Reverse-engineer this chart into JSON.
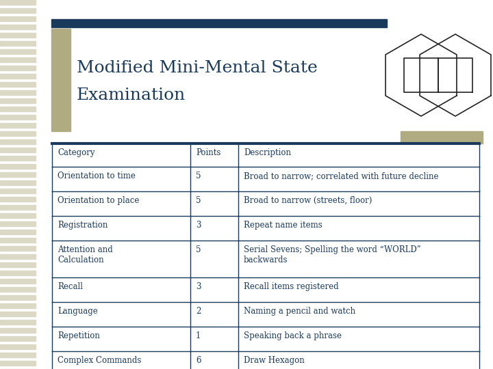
{
  "title_line1": "Modified Mini-Mental State",
  "title_line2": "Examination",
  "title_color": "#1a3a5c",
  "background_color": "#ffffff",
  "accent_color": "#1a3a5c",
  "olive_color": "#b0ab80",
  "stripe_color": "#dbd8c5",
  "header_row": [
    "Category",
    "Points",
    "Description"
  ],
  "rows": [
    [
      "Orientation to time",
      "5",
      "Broad to narrow; correlated with future decline"
    ],
    [
      "Orientation to place",
      "5",
      "Broad to narrow (streets, floor)"
    ],
    [
      "Registration",
      "3",
      "Repeat name items"
    ],
    [
      "Attention and\nCalculation",
      "5",
      "Serial Sevens; Spelling the word “WORLD”\nbackwards"
    ],
    [
      "Recall",
      "3",
      "Recall items registered"
    ],
    [
      "Language",
      "2",
      "Naming a pencil and watch"
    ],
    [
      "Repetition",
      "1",
      "Speaking back a phrase"
    ],
    [
      "Complex Commands",
      "6",
      "Draw Hexagon"
    ]
  ],
  "font_size": 8.5,
  "header_font_size": 8.5,
  "title_font_size": 18
}
